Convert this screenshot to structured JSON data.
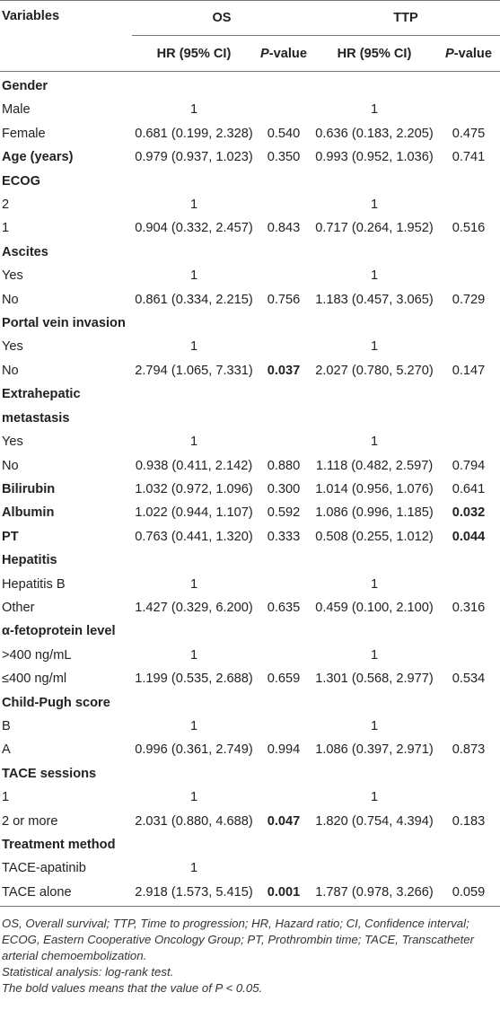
{
  "table": {
    "header": {
      "variables": "Variables",
      "groups": [
        "OS",
        "TTP"
      ],
      "subcolumns": [
        "HR (95% CI)",
        "P-value",
        "HR (95% CI)",
        "P-value"
      ]
    },
    "rows": [
      [
        {
          "text": "Gender",
          "bold": true
        }
      ],
      [
        "Male",
        "1",
        null,
        "1"
      ],
      [
        "Female",
        "0.681 (0.199, 2.328)",
        "0.540",
        "0.636 (0.183, 2.205)",
        "0.475"
      ],
      [
        {
          "text": "Age (years)",
          "bold": true
        },
        "0.979 (0.937, 1.023)",
        "0.350",
        "0.993 (0.952, 1.036)",
        "0.741"
      ],
      [
        {
          "text": "ECOG",
          "bold": true
        }
      ],
      [
        "2",
        "1",
        null,
        "1"
      ],
      [
        "1",
        "0.904 (0.332, 2.457)",
        "0.843",
        "0.717 (0.264, 1.952)",
        "0.516"
      ],
      [
        {
          "text": "Ascites",
          "bold": true
        }
      ],
      [
        "Yes",
        "1",
        null,
        "1"
      ],
      [
        "No",
        "0.861 (0.334, 2.215)",
        "0.756",
        "1.183 (0.457, 3.065)",
        "0.729"
      ],
      [
        {
          "text": "Portal vein invasion",
          "bold": true
        }
      ],
      [
        "Yes",
        "1",
        null,
        "1"
      ],
      [
        "No",
        "2.794 (1.065, 7.331)",
        {
          "text": "0.037",
          "bold": true
        },
        "2.027 (0.780, 5.270)",
        "0.147"
      ],
      [
        {
          "text": "Extrahepatic metastasis",
          "bold": true
        }
      ],
      [
        "Yes",
        "1",
        null,
        "1"
      ],
      [
        "No",
        "0.938 (0.411, 2.142)",
        "0.880",
        "1.118 (0.482, 2.597)",
        "0.794"
      ],
      [
        {
          "text": "Bilirubin",
          "bold": true
        },
        "1.032 (0.972, 1.096)",
        "0.300",
        "1.014 (0.956, 1.076)",
        "0.641"
      ],
      [
        {
          "text": "Albumin",
          "bold": true
        },
        "1.022 (0.944, 1.107)",
        "0.592",
        "1.086 (0.996, 1.185)",
        {
          "text": "0.032",
          "bold": true
        }
      ],
      [
        {
          "text": "PT",
          "bold": true
        },
        "0.763 (0.441, 1.320)",
        "0.333",
        "0.508 (0.255, 1.012)",
        {
          "text": "0.044",
          "bold": true
        }
      ],
      [
        {
          "text": "Hepatitis",
          "bold": true
        }
      ],
      [
        "Hepatitis B",
        "1",
        null,
        "1"
      ],
      [
        "Other",
        "1.427 (0.329, 6.200)",
        "0.635",
        "0.459 (0.100, 2.100)",
        "0.316"
      ],
      [
        {
          "text": "α-fetoprotein level",
          "bold": true
        }
      ],
      [
        ">400 ng/mL",
        "1",
        null,
        "1"
      ],
      [
        "≤400 ng/ml",
        "1.199 (0.535, 2.688)",
        "0.659",
        "1.301 (0.568, 2.977)",
        "0.534"
      ],
      [
        {
          "text": "Child-Pugh score",
          "bold": true
        }
      ],
      [
        "B",
        "1",
        null,
        "1"
      ],
      [
        "A",
        "0.996 (0.361, 2.749)",
        "0.994",
        "1.086 (0.397, 2.971)",
        "0.873"
      ],
      [
        {
          "text": "TACE sessions",
          "bold": true
        }
      ],
      [
        "1",
        "1",
        null,
        "1"
      ],
      [
        "2 or more",
        "2.031 (0.880, 4.688)",
        {
          "text": "0.047",
          "bold": true
        },
        "1.820 (0.754, 4.394)",
        "0.183"
      ],
      [
        {
          "text": "Treatment method",
          "bold": true
        }
      ],
      [
        "TACE-apatinib",
        "1"
      ],
      [
        "TACE alone",
        "2.918 (1.573, 5.415)",
        {
          "text": "0.001",
          "bold": true
        },
        "1.787 (0.978, 3.266)",
        "0.059"
      ]
    ],
    "footnotes": [
      "OS, Overall survival; TTP, Time to progression; HR, Hazard ratio; CI, Confidence interval; ECOG, Eastern Cooperative Oncology Group; PT, Prothrombin time; TACE, Transcatheter arterial chemoembolization.",
      "Statistical analysis: log-rank test.",
      "The bold values means that the value of P < 0.05."
    ]
  }
}
